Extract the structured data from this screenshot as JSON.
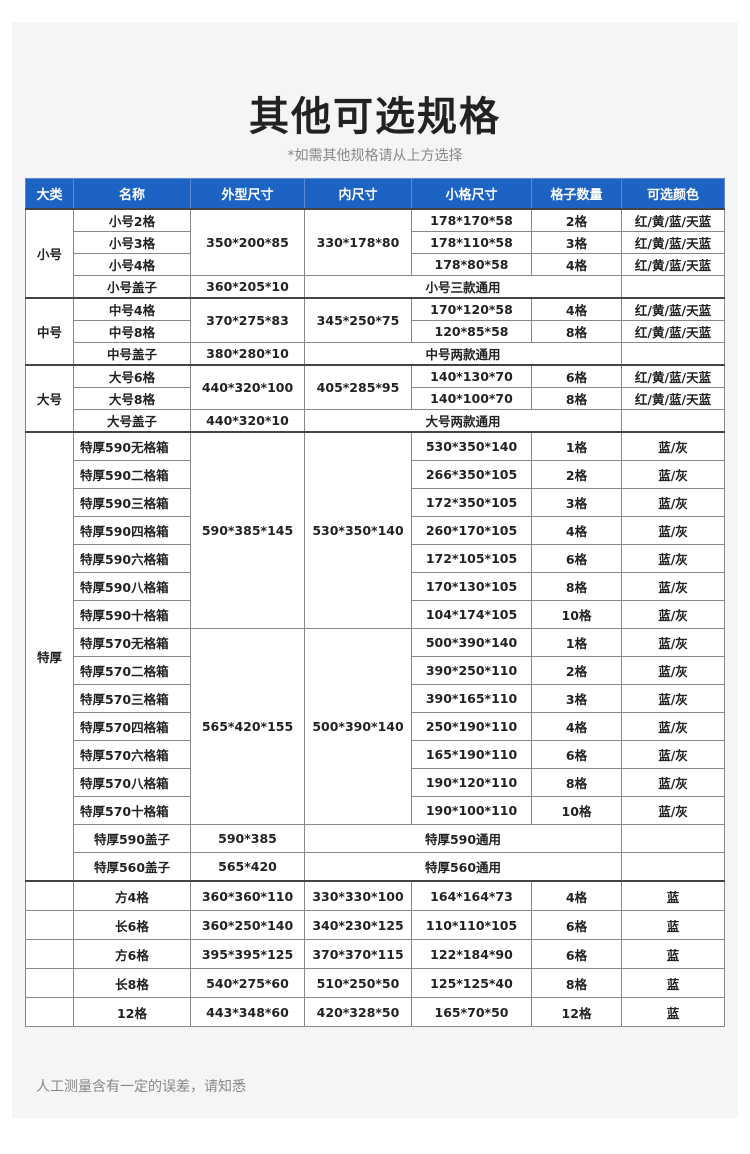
{
  "title": "其他可选规格",
  "subtitle": "*如需其他规格请从上方选择",
  "colors": {
    "header_bg": "#1c63c4",
    "page_bg": "#f5f5f5"
  },
  "headers": [
    "大类",
    "名称",
    "外型尺寸",
    "内尺寸",
    "小格尺寸",
    "格子数量",
    "可选颜色"
  ],
  "groups": [
    {
      "category": "小号",
      "size": "s",
      "blocks": [
        {
          "outer": "350*200*85",
          "inner": "330*178*80",
          "rows": [
            {
              "name": "小号2格",
              "cell": "178*170*58",
              "count": "2格",
              "color": "红/黄/蓝/天蓝"
            },
            {
              "name": "小号3格",
              "cell": "178*110*58",
              "count": "3格",
              "color": "红/黄/蓝/天蓝"
            },
            {
              "name": "小号4格",
              "cell": "178*80*58",
              "count": "4格",
              "color": "红/黄/蓝/天蓝"
            }
          ]
        }
      ],
      "lids": [
        {
          "name": "小号盖子",
          "outer": "360*205*10",
          "note": "小号三款通用"
        }
      ]
    },
    {
      "category": "中号",
      "size": "s",
      "blocks": [
        {
          "outer": "370*275*83",
          "inner": "345*250*75",
          "rows": [
            {
              "name": "中号4格",
              "cell": "170*120*58",
              "count": "4格",
              "color": "红/黄/蓝/天蓝"
            },
            {
              "name": "中号8格",
              "cell": "120*85*58",
              "count": "8格",
              "color": "红/黄/蓝/天蓝"
            }
          ]
        }
      ],
      "lids": [
        {
          "name": "中号盖子",
          "outer": "380*280*10",
          "note": "中号两款通用"
        }
      ]
    },
    {
      "category": "大号",
      "size": "s",
      "blocks": [
        {
          "outer": "440*320*100",
          "inner": "405*285*95",
          "rows": [
            {
              "name": "大号6格",
              "cell": "140*130*70",
              "count": "6格",
              "color": "红/黄/蓝/天蓝"
            },
            {
              "name": "大号8格",
              "cell": "140*100*70",
              "count": "8格",
              "color": "红/黄/蓝/天蓝"
            }
          ]
        }
      ],
      "lids": [
        {
          "name": "大号盖子",
          "outer": "440*320*10",
          "note": "大号两款通用"
        }
      ]
    },
    {
      "category": "特厚",
      "size": "t",
      "blocks": [
        {
          "outer": "590*385*145",
          "inner": "530*350*140",
          "rows": [
            {
              "name": "特厚590无格箱",
              "cell": "530*350*140",
              "count": "1格",
              "color": "蓝/灰"
            },
            {
              "name": "特厚590二格箱",
              "cell": "266*350*105",
              "count": "2格",
              "color": "蓝/灰"
            },
            {
              "name": "特厚590三格箱",
              "cell": "172*350*105",
              "count": "3格",
              "color": "蓝/灰"
            },
            {
              "name": "特厚590四格箱",
              "cell": "260*170*105",
              "count": "4格",
              "color": "蓝/灰"
            },
            {
              "name": "特厚590六格箱",
              "cell": "172*105*105",
              "count": "6格",
              "color": "蓝/灰"
            },
            {
              "name": "特厚590八格箱",
              "cell": "170*130*105",
              "count": "8格",
              "color": "蓝/灰"
            },
            {
              "name": "特厚590十格箱",
              "cell": "104*174*105",
              "count": "10格",
              "color": "蓝/灰"
            }
          ]
        },
        {
          "outer": "565*420*155",
          "inner": "500*390*140",
          "rows": [
            {
              "name": "特厚570无格箱",
              "cell": "500*390*140",
              "count": "1格",
              "color": "蓝/灰"
            },
            {
              "name": "特厚570二格箱",
              "cell": "390*250*110",
              "count": "2格",
              "color": "蓝/灰"
            },
            {
              "name": "特厚570三格箱",
              "cell": "390*165*110",
              "count": "3格",
              "color": "蓝/灰"
            },
            {
              "name": "特厚570四格箱",
              "cell": "250*190*110",
              "count": "4格",
              "color": "蓝/灰"
            },
            {
              "name": "特厚570六格箱",
              "cell": "165*190*110",
              "count": "6格",
              "color": "蓝/灰"
            },
            {
              "name": "特厚570八格箱",
              "cell": "190*120*110",
              "count": "8格",
              "color": "蓝/灰"
            },
            {
              "name": "特厚570十格箱",
              "cell": "190*100*110",
              "count": "10格",
              "color": "蓝/灰"
            }
          ]
        }
      ],
      "lids": [
        {
          "name": "特厚590盖子",
          "outer": "590*385",
          "note": "特厚590通用"
        },
        {
          "name": "特厚560盖子",
          "outer": "565*420",
          "note": "特厚560通用"
        }
      ]
    }
  ],
  "extra_rows": [
    {
      "name": "方4格",
      "outer": "360*360*110",
      "inner": "330*330*100",
      "cell": "164*164*73",
      "count": "4格",
      "color": "蓝"
    },
    {
      "name": "长6格",
      "outer": "360*250*140",
      "inner": "340*230*125",
      "cell": "110*110*105",
      "count": "6格",
      "color": "蓝"
    },
    {
      "name": "方6格",
      "outer": "395*395*125",
      "inner": "370*370*115",
      "cell": "122*184*90",
      "count": "6格",
      "color": "蓝"
    },
    {
      "name": "长8格",
      "outer": "540*275*60",
      "inner": "510*250*50",
      "cell": "125*125*40",
      "count": "8格",
      "color": "蓝"
    },
    {
      "name": "12格",
      "outer": "443*348*60",
      "inner": "420*328*50",
      "cell": "165*70*50",
      "count": "12格",
      "color": "蓝"
    }
  ],
  "footer": "人工测量含有一定的误差，请知悉"
}
